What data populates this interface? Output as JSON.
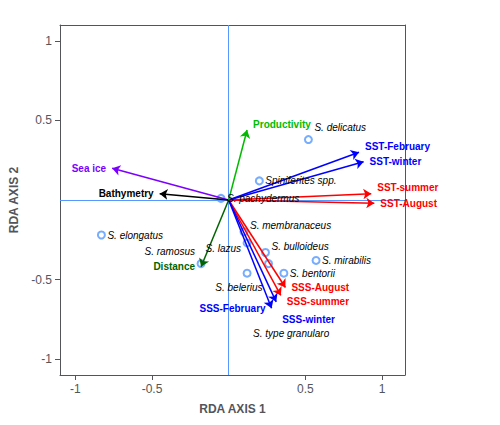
{
  "chart_data": {
    "type": "scatter",
    "xlabel": "RDA AXIS 1",
    "ylabel": "RDA AXIS 2",
    "xlim": [
      -1.1,
      1.15
    ],
    "ylim": [
      -1.1,
      1.1
    ],
    "xticks": [
      -1,
      -0.5,
      0.5,
      1
    ],
    "yticks": [
      -1,
      -0.5,
      0.5,
      1
    ],
    "grid": false,
    "arrows": [
      {
        "label": "SST-August",
        "color": "#ff0000",
        "x": [
          0,
          0.95
        ],
        "y": [
          0,
          -0.02
        ]
      },
      {
        "label": "SST-summer",
        "color": "#ff0000",
        "x": [
          0,
          0.93
        ],
        "y": [
          0,
          0.04
        ]
      },
      {
        "label": "SST-winter",
        "color": "#0000ff",
        "x": [
          0,
          0.88
        ],
        "y": [
          0,
          0.24
        ]
      },
      {
        "label": "SST-February",
        "color": "#0000ff",
        "x": [
          0,
          0.85
        ],
        "y": [
          0,
          0.3
        ]
      },
      {
        "label": "SSS-August",
        "color": "#ff0000",
        "x": [
          0,
          0.37
        ],
        "y": [
          0,
          -0.55
        ]
      },
      {
        "label": "SSS-summer",
        "color": "#ff0000",
        "x": [
          0,
          0.34
        ],
        "y": [
          0,
          -0.6
        ]
      },
      {
        "label": "SSS-winter",
        "color": "#0000ff",
        "x": [
          0,
          0.31
        ],
        "y": [
          0,
          -0.64
        ]
      },
      {
        "label": "SSS-February",
        "color": "#0000ff",
        "x": [
          0,
          0.28
        ],
        "y": [
          0,
          -0.68
        ]
      },
      {
        "label": "Sea ice",
        "color": "#7b00ff",
        "x": [
          0,
          -0.76
        ],
        "y": [
          0,
          0.2
        ]
      },
      {
        "label": "Bathymetry",
        "color": "#000000",
        "x": [
          0,
          -0.45
        ],
        "y": [
          0,
          0.04
        ]
      },
      {
        "label": "Distance",
        "color": "#006400",
        "x": [
          0,
          -0.18
        ],
        "y": [
          0,
          -0.42
        ]
      },
      {
        "label": "Productivity",
        "color": "#00bb00",
        "x": [
          0,
          0.12
        ],
        "y": [
          0,
          0.44
        ]
      }
    ],
    "points": {
      "color": "#5599ff",
      "marker": "circle",
      "labels": [
        "S. delicatus",
        "S. elongatus",
        "Spiniferites spp.",
        "S. pachydermus",
        "S. membranaceus",
        "S. lazus",
        "S. ramosus",
        "S. bulloideus",
        "S. belerius",
        "S. type granularo",
        "S. mirabilis",
        "S. bentorii"
      ],
      "x": [
        0.52,
        -0.83,
        0.2,
        -0.05,
        0.1,
        0.12,
        -0.18,
        0.24,
        0.26,
        0.12,
        0.57,
        0.36
      ],
      "y": [
        0.38,
        -0.22,
        0.12,
        0.01,
        -0.2,
        -0.27,
        -0.4,
        -0.33,
        -0.4,
        -0.46,
        -0.38,
        -0.46
      ]
    }
  }
}
